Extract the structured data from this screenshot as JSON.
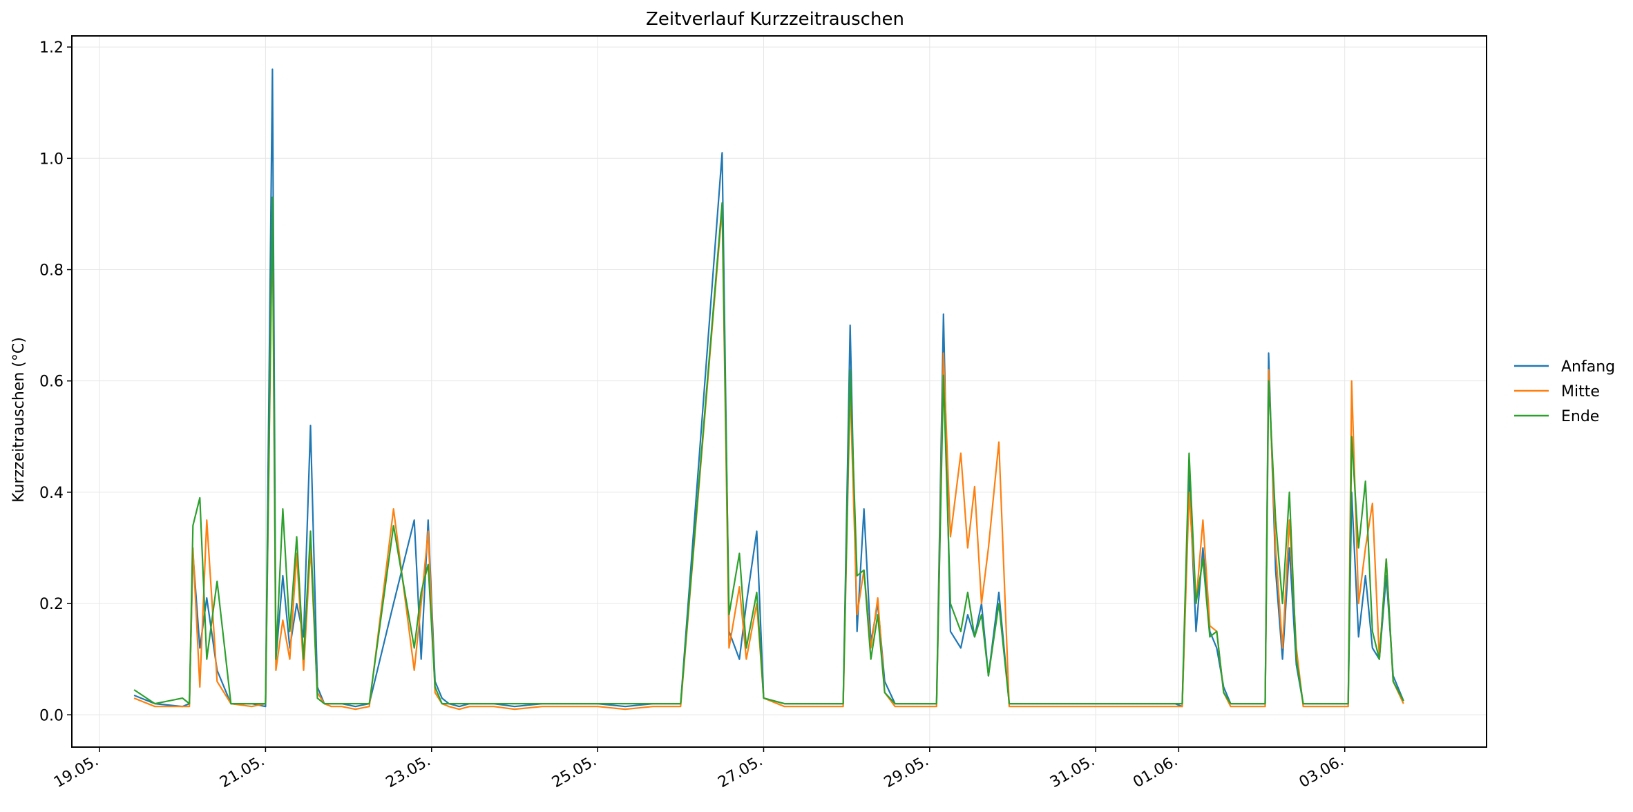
{
  "chart_data": {
    "type": "line",
    "title": "Zeitverlauf Kurzzeitrauschen",
    "xlabel": "",
    "ylabel": "Kurzzeitrauschen (°C)",
    "x_unit": "date",
    "xlim": [
      "2025-05-18T16:00",
      "2025-06-04T17:00"
    ],
    "ylim": [
      -0.058,
      1.22
    ],
    "x_ticks": [
      {
        "date": "2025-05-19",
        "label": "19.05."
      },
      {
        "date": "2025-05-21",
        "label": "21.05."
      },
      {
        "date": "2025-05-23",
        "label": "23.05."
      },
      {
        "date": "2025-05-25",
        "label": "25.05."
      },
      {
        "date": "2025-05-27",
        "label": "27.05."
      },
      {
        "date": "2025-05-29",
        "label": "29.05."
      },
      {
        "date": "2025-05-31",
        "label": "31.05."
      },
      {
        "date": "2025-06-01",
        "label": "01.06."
      },
      {
        "date": "2025-06-03",
        "label": "03.06."
      }
    ],
    "y_ticks": [
      {
        "value": 0.0,
        "label": "0.0"
      },
      {
        "value": 0.2,
        "label": "0.2"
      },
      {
        "value": 0.4,
        "label": "0.4"
      },
      {
        "value": 0.6,
        "label": "0.6"
      },
      {
        "value": 0.8,
        "label": "0.8"
      },
      {
        "value": 1.0,
        "label": "1.0"
      },
      {
        "value": 1.2,
        "label": "1.2"
      }
    ],
    "grid": true,
    "legend_position": "right",
    "series": [
      {
        "name": "Anfang",
        "color": "#1f77b4",
        "x": [
          "2025-05-19T10:00",
          "2025-05-19T16:00",
          "2025-05-20T00:00",
          "2025-05-20T02:00",
          "2025-05-20T03:00",
          "2025-05-20T05:00",
          "2025-05-20T07:00",
          "2025-05-20T10:00",
          "2025-05-20T14:00",
          "2025-05-20T20:00",
          "2025-05-21T00:00",
          "2025-05-21T02:00",
          "2025-05-21T03:00",
          "2025-05-21T05:00",
          "2025-05-21T07:00",
          "2025-05-21T09:00",
          "2025-05-21T11:00",
          "2025-05-21T13:00",
          "2025-05-21T15:00",
          "2025-05-21T17:00",
          "2025-05-21T19:00",
          "2025-05-21T22:00",
          "2025-05-22T02:00",
          "2025-05-22T06:00",
          "2025-05-22T13:00",
          "2025-05-22T19:00",
          "2025-05-22T21:00",
          "2025-05-22T23:00",
          "2025-05-23T01:00",
          "2025-05-23T03:00",
          "2025-05-23T05:00",
          "2025-05-23T08:00",
          "2025-05-23T11:00",
          "2025-05-23T18:00",
          "2025-05-24T00:00",
          "2025-05-24T08:00",
          "2025-05-24T16:00",
          "2025-05-25T00:00",
          "2025-05-25T08:00",
          "2025-05-25T16:00",
          "2025-05-26T00:00",
          "2025-05-26T12:00",
          "2025-05-26T14:00",
          "2025-05-26T17:00",
          "2025-05-26T19:00",
          "2025-05-26T22:00",
          "2025-05-27T00:00",
          "2025-05-27T06:00",
          "2025-05-27T12:00",
          "2025-05-27T23:00",
          "2025-05-28T01:00",
          "2025-05-28T03:00",
          "2025-05-28T05:00",
          "2025-05-28T07:00",
          "2025-05-28T09:00",
          "2025-05-28T11:00",
          "2025-05-28T14:00",
          "2025-05-28T20:00",
          "2025-05-29T02:00",
          "2025-05-29T04:00",
          "2025-05-29T06:00",
          "2025-05-29T09:00",
          "2025-05-29T11:00",
          "2025-05-29T13:00",
          "2025-05-29T15:00",
          "2025-05-29T17:00",
          "2025-05-29T20:00",
          "2025-05-29T23:00",
          "2025-05-30T12:00",
          "2025-05-31T00:00",
          "2025-05-31T12:00",
          "2025-05-31T23:00",
          "2025-06-01T01:00",
          "2025-06-01T03:00",
          "2025-06-01T05:00",
          "2025-06-01T07:00",
          "2025-06-01T09:00",
          "2025-06-01T11:00",
          "2025-06-01T13:00",
          "2025-06-01T15:00",
          "2025-06-01T18:00",
          "2025-06-02T01:00",
          "2025-06-02T02:00",
          "2025-06-02T04:00",
          "2025-06-02T06:00",
          "2025-06-02T08:00",
          "2025-06-02T10:00",
          "2025-06-02T12:00",
          "2025-06-02T15:00",
          "2025-06-02T20:00",
          "2025-06-03T01:00",
          "2025-06-03T02:00",
          "2025-06-03T04:00",
          "2025-06-03T06:00",
          "2025-06-03T08:00",
          "2025-06-03T10:00",
          "2025-06-03T12:00",
          "2025-06-03T14:00",
          "2025-06-03T17:00"
        ],
        "y": [
          0.035,
          0.02,
          0.015,
          0.02,
          0.29,
          0.12,
          0.21,
          0.08,
          0.02,
          0.02,
          0.015,
          1.16,
          0.1,
          0.25,
          0.12,
          0.2,
          0.14,
          0.52,
          0.05,
          0.02,
          0.02,
          0.02,
          0.015,
          0.02,
          0.2,
          0.35,
          0.1,
          0.35,
          0.06,
          0.03,
          0.02,
          0.015,
          0.02,
          0.02,
          0.015,
          0.02,
          0.02,
          0.02,
          0.015,
          0.02,
          0.02,
          1.01,
          0.15,
          0.1,
          0.2,
          0.33,
          0.03,
          0.02,
          0.02,
          0.02,
          0.7,
          0.15,
          0.37,
          0.13,
          0.2,
          0.06,
          0.02,
          0.02,
          0.02,
          0.72,
          0.15,
          0.12,
          0.18,
          0.14,
          0.2,
          0.07,
          0.22,
          0.02,
          0.02,
          0.02,
          0.02,
          0.02,
          0.015,
          0.43,
          0.15,
          0.3,
          0.15,
          0.12,
          0.05,
          0.02,
          0.02,
          0.02,
          0.65,
          0.26,
          0.1,
          0.3,
          0.09,
          0.02,
          0.02,
          0.02,
          0.02,
          0.4,
          0.14,
          0.25,
          0.12,
          0.1,
          0.25,
          0.07,
          0.025
        ]
      },
      {
        "name": "Mitte",
        "color": "#ff7f0e",
        "x": [
          "2025-05-19T10:00",
          "2025-05-19T16:00",
          "2025-05-20T00:00",
          "2025-05-20T02:00",
          "2025-05-20T03:00",
          "2025-05-20T05:00",
          "2025-05-20T07:00",
          "2025-05-20T10:00",
          "2025-05-20T14:00",
          "2025-05-20T20:00",
          "2025-05-21T00:00",
          "2025-05-21T02:00",
          "2025-05-21T03:00",
          "2025-05-21T05:00",
          "2025-05-21T07:00",
          "2025-05-21T09:00",
          "2025-05-21T11:00",
          "2025-05-21T13:00",
          "2025-05-21T15:00",
          "2025-05-21T17:00",
          "2025-05-21T19:00",
          "2025-05-21T22:00",
          "2025-05-22T02:00",
          "2025-05-22T06:00",
          "2025-05-22T13:00",
          "2025-05-22T19:00",
          "2025-05-22T21:00",
          "2025-05-22T23:00",
          "2025-05-23T01:00",
          "2025-05-23T03:00",
          "2025-05-23T05:00",
          "2025-05-23T08:00",
          "2025-05-23T11:00",
          "2025-05-23T18:00",
          "2025-05-24T00:00",
          "2025-05-24T08:00",
          "2025-05-24T16:00",
          "2025-05-25T00:00",
          "2025-05-25T08:00",
          "2025-05-25T16:00",
          "2025-05-26T00:00",
          "2025-05-26T12:00",
          "2025-05-26T14:00",
          "2025-05-26T17:00",
          "2025-05-26T19:00",
          "2025-05-26T22:00",
          "2025-05-27T00:00",
          "2025-05-27T06:00",
          "2025-05-27T12:00",
          "2025-05-27T23:00",
          "2025-05-28T01:00",
          "2025-05-28T03:00",
          "2025-05-28T05:00",
          "2025-05-28T07:00",
          "2025-05-28T09:00",
          "2025-05-28T11:00",
          "2025-05-28T14:00",
          "2025-05-28T20:00",
          "2025-05-29T02:00",
          "2025-05-29T04:00",
          "2025-05-29T06:00",
          "2025-05-29T09:00",
          "2025-05-29T11:00",
          "2025-05-29T13:00",
          "2025-05-29T15:00",
          "2025-05-29T17:00",
          "2025-05-29T20:00",
          "2025-05-29T23:00",
          "2025-05-30T12:00",
          "2025-05-31T00:00",
          "2025-05-31T12:00",
          "2025-05-31T23:00",
          "2025-06-01T01:00",
          "2025-06-01T03:00",
          "2025-06-01T05:00",
          "2025-06-01T07:00",
          "2025-06-01T09:00",
          "2025-06-01T11:00",
          "2025-06-01T13:00",
          "2025-06-01T15:00",
          "2025-06-01T18:00",
          "2025-06-02T01:00",
          "2025-06-02T02:00",
          "2025-06-02T04:00",
          "2025-06-02T06:00",
          "2025-06-02T08:00",
          "2025-06-02T10:00",
          "2025-06-02T12:00",
          "2025-06-02T15:00",
          "2025-06-02T20:00",
          "2025-06-03T01:00",
          "2025-06-03T02:00",
          "2025-06-03T04:00",
          "2025-06-03T06:00",
          "2025-06-03T08:00",
          "2025-06-03T10:00",
          "2025-06-03T12:00",
          "2025-06-03T14:00",
          "2025-06-03T17:00"
        ],
        "y": [
          0.03,
          0.015,
          0.015,
          0.015,
          0.3,
          0.05,
          0.35,
          0.06,
          0.02,
          0.015,
          0.02,
          0.9,
          0.08,
          0.17,
          0.1,
          0.29,
          0.08,
          0.3,
          0.04,
          0.02,
          0.015,
          0.015,
          0.01,
          0.015,
          0.37,
          0.08,
          0.2,
          0.33,
          0.04,
          0.02,
          0.015,
          0.01,
          0.015,
          0.015,
          0.01,
          0.015,
          0.015,
          0.015,
          0.01,
          0.015,
          0.015,
          0.91,
          0.12,
          0.23,
          0.1,
          0.2,
          0.03,
          0.015,
          0.015,
          0.015,
          0.59,
          0.18,
          0.26,
          0.12,
          0.21,
          0.04,
          0.015,
          0.015,
          0.015,
          0.65,
          0.32,
          0.47,
          0.3,
          0.41,
          0.2,
          0.3,
          0.49,
          0.015,
          0.015,
          0.015,
          0.015,
          0.015,
          0.015,
          0.4,
          0.2,
          0.35,
          0.16,
          0.15,
          0.04,
          0.015,
          0.015,
          0.015,
          0.62,
          0.3,
          0.12,
          0.35,
          0.12,
          0.015,
          0.015,
          0.015,
          0.015,
          0.6,
          0.2,
          0.3,
          0.38,
          0.1,
          0.28,
          0.06,
          0.02
        ]
      },
      {
        "name": "Ende",
        "color": "#2ca02c",
        "x": [
          "2025-05-19T10:00",
          "2025-05-19T16:00",
          "2025-05-20T00:00",
          "2025-05-20T02:00",
          "2025-05-20T03:00",
          "2025-05-20T05:00",
          "2025-05-20T07:00",
          "2025-05-20T10:00",
          "2025-05-20T14:00",
          "2025-05-20T20:00",
          "2025-05-21T00:00",
          "2025-05-21T02:00",
          "2025-05-21T03:00",
          "2025-05-21T05:00",
          "2025-05-21T07:00",
          "2025-05-21T09:00",
          "2025-05-21T11:00",
          "2025-05-21T13:00",
          "2025-05-21T15:00",
          "2025-05-21T17:00",
          "2025-05-21T19:00",
          "2025-05-21T22:00",
          "2025-05-22T02:00",
          "2025-05-22T06:00",
          "2025-05-22T13:00",
          "2025-05-22T19:00",
          "2025-05-22T21:00",
          "2025-05-22T23:00",
          "2025-05-23T01:00",
          "2025-05-23T03:00",
          "2025-05-23T05:00",
          "2025-05-23T08:00",
          "2025-05-23T11:00",
          "2025-05-23T18:00",
          "2025-05-24T00:00",
          "2025-05-24T08:00",
          "2025-05-24T16:00",
          "2025-05-25T00:00",
          "2025-05-25T08:00",
          "2025-05-25T16:00",
          "2025-05-26T00:00",
          "2025-05-26T12:00",
          "2025-05-26T14:00",
          "2025-05-26T17:00",
          "2025-05-26T19:00",
          "2025-05-26T22:00",
          "2025-05-27T00:00",
          "2025-05-27T06:00",
          "2025-05-27T12:00",
          "2025-05-27T23:00",
          "2025-05-28T01:00",
          "2025-05-28T03:00",
          "2025-05-28T05:00",
          "2025-05-28T07:00",
          "2025-05-28T09:00",
          "2025-05-28T11:00",
          "2025-05-28T14:00",
          "2025-05-28T20:00",
          "2025-05-29T02:00",
          "2025-05-29T04:00",
          "2025-05-29T06:00",
          "2025-05-29T09:00",
          "2025-05-29T11:00",
          "2025-05-29T13:00",
          "2025-05-29T15:00",
          "2025-05-29T17:00",
          "2025-05-29T20:00",
          "2025-05-29T23:00",
          "2025-05-30T12:00",
          "2025-05-31T00:00",
          "2025-05-31T12:00",
          "2025-05-31T23:00",
          "2025-06-01T01:00",
          "2025-06-01T03:00",
          "2025-06-01T05:00",
          "2025-06-01T07:00",
          "2025-06-01T09:00",
          "2025-06-01T11:00",
          "2025-06-01T13:00",
          "2025-06-01T15:00",
          "2025-06-01T18:00",
          "2025-06-02T01:00",
          "2025-06-02T02:00",
          "2025-06-02T04:00",
          "2025-06-02T06:00",
          "2025-06-02T08:00",
          "2025-06-02T10:00",
          "2025-06-02T12:00",
          "2025-06-02T15:00",
          "2025-06-02T20:00",
          "2025-06-03T01:00",
          "2025-06-03T02:00",
          "2025-06-03T04:00",
          "2025-06-03T06:00",
          "2025-06-03T08:00",
          "2025-06-03T10:00",
          "2025-06-03T12:00",
          "2025-06-03T14:00",
          "2025-06-03T17:00"
        ],
        "y": [
          0.045,
          0.02,
          0.03,
          0.02,
          0.34,
          0.39,
          0.1,
          0.24,
          0.02,
          0.02,
          0.02,
          0.93,
          0.1,
          0.37,
          0.15,
          0.32,
          0.1,
          0.33,
          0.03,
          0.02,
          0.02,
          0.02,
          0.02,
          0.02,
          0.34,
          0.12,
          0.22,
          0.27,
          0.05,
          0.02,
          0.02,
          0.02,
          0.02,
          0.02,
          0.02,
          0.02,
          0.02,
          0.02,
          0.02,
          0.02,
          0.02,
          0.92,
          0.18,
          0.29,
          0.12,
          0.22,
          0.03,
          0.02,
          0.02,
          0.02,
          0.62,
          0.25,
          0.26,
          0.1,
          0.18,
          0.04,
          0.02,
          0.02,
          0.02,
          0.61,
          0.2,
          0.15,
          0.22,
          0.14,
          0.18,
          0.07,
          0.2,
          0.02,
          0.02,
          0.02,
          0.02,
          0.02,
          0.02,
          0.47,
          0.2,
          0.28,
          0.14,
          0.15,
          0.04,
          0.02,
          0.02,
          0.02,
          0.6,
          0.35,
          0.2,
          0.4,
          0.1,
          0.02,
          0.02,
          0.02,
          0.02,
          0.5,
          0.3,
          0.42,
          0.15,
          0.1,
          0.28,
          0.06,
          0.025
        ]
      }
    ]
  }
}
